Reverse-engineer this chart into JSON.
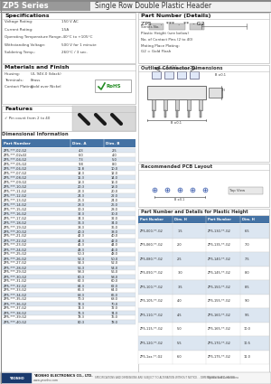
{
  "title_series": "ZP5 Series",
  "title_main": "Single Row Double Plastic Header",
  "header_bg": "#999999",
  "spec_title": "Specifications",
  "specs": [
    [
      "Voltage Rating:",
      "150 V AC"
    ],
    [
      "Current Rating:",
      "1.5A"
    ],
    [
      "Operating Temperature Range:",
      "-40°C to +105°C"
    ],
    [
      "Withstanding Voltage:",
      "500 V for 1 minute"
    ],
    [
      "Soldering Temp.:",
      "260°C / 3 sec."
    ]
  ],
  "mat_title": "Materials and Finish",
  "materials": [
    [
      "Housing:",
      "UL 94V-0 (black)"
    ],
    [
      "Terminals:",
      "Brass"
    ],
    [
      "Contact Plating:",
      "Gold over Nickel"
    ]
  ],
  "feat_title": "Features",
  "features": [
    "✓ Pin count from 2 to 40"
  ],
  "dim_title": "Dimensional Information",
  "dim_headers": [
    "Part Number",
    "Dim. A",
    "Dim. B"
  ],
  "dim_rows": [
    [
      "ZP5-***-02-G2",
      "4.3",
      "2.5"
    ],
    [
      "ZP5-***-02x32",
      "6.0",
      "4.0"
    ],
    [
      "ZP5-***-04-G2",
      "7.3",
      "5.0"
    ],
    [
      "ZP5-***-05-G2",
      "9.8",
      "8.0"
    ],
    [
      "ZP5-***-06-G2",
      "11.8",
      "10.0"
    ],
    [
      "ZP5-***-07-G2",
      "14.3",
      "12.0"
    ],
    [
      "ZP5-***-08-G2",
      "16.3",
      "14.0"
    ],
    [
      "ZP5-***-09-G2",
      "18.3",
      "16.0"
    ],
    [
      "ZP5-***-10-G2",
      "20.3",
      "18.0"
    ],
    [
      "ZP5-***-11-G2",
      "22.3",
      "20.0"
    ],
    [
      "ZP5-***-12-G2",
      "24.3",
      "22.0"
    ],
    [
      "ZP5-***-13-G2",
      "26.3",
      "24.0"
    ],
    [
      "ZP5-***-14-G2",
      "28.3",
      "26.0"
    ],
    [
      "ZP5-***-15-G2",
      "30.3",
      "28.0"
    ],
    [
      "ZP5-***-16-G2",
      "32.3",
      "30.0"
    ],
    [
      "ZP5-***-17-G2",
      "34.3",
      "32.0"
    ],
    [
      "ZP5-***-18-G2",
      "36.3",
      "34.0"
    ],
    [
      "ZP5-***-19-G2",
      "38.3",
      "36.0"
    ],
    [
      "ZP5-***-20-G2",
      "40.3",
      "38.0"
    ],
    [
      "ZP5-***-21-G2",
      "42.3",
      "40.0"
    ],
    [
      "ZP5-***-22-G2",
      "44.3",
      "42.0"
    ],
    [
      "ZP5-***-23-G2",
      "46.3",
      "44.0"
    ],
    [
      "ZP5-***-24-G2",
      "48.3",
      "46.0"
    ],
    [
      "ZP5-***-25-G2",
      "50.3",
      "48.0"
    ],
    [
      "ZP5-***-26-G2",
      "52.3",
      "50.0"
    ],
    [
      "ZP5-***-27-G2",
      "54.3",
      "52.0"
    ],
    [
      "ZP5-***-28-G2",
      "56.3",
      "54.0"
    ],
    [
      "ZP5-***-29-G2",
      "58.3",
      "56.0"
    ],
    [
      "ZP5-***-30-G2",
      "60.3",
      "58.0"
    ],
    [
      "ZP5-***-31-G2",
      "62.3",
      "60.0"
    ],
    [
      "ZP5-***-32-G2",
      "64.3",
      "62.0"
    ],
    [
      "ZP5-***-33-G2",
      "66.3",
      "64.0"
    ],
    [
      "ZP5-***-34-G2",
      "68.3",
      "66.0"
    ],
    [
      "ZP5-***-35-G2",
      "70.3",
      "68.0"
    ],
    [
      "ZP5-***-36-G2",
      "72.3",
      "70.0"
    ],
    [
      "ZP5-***-37-G2",
      "74.3",
      "72.0"
    ],
    [
      "ZP5-***-38-G2",
      "76.3",
      "74.0"
    ],
    [
      "ZP5-***-39-G2",
      "78.3",
      "76.0"
    ],
    [
      "ZP5-***-40-G2",
      "80.3",
      "78.0"
    ]
  ],
  "part_detail_title": "Part Number (Details)",
  "part_detail_label": "ZP5     .  ***  .  **  - G2",
  "part_detail_items": [
    [
      "Series No.",
      0.42
    ],
    [
      "Plastic Height (see below)",
      0.55
    ],
    [
      "No. of Contact Pins (2 to 40)",
      0.67
    ],
    [
      "Mating Place Plating:",
      0.79
    ],
    [
      "G2 = Gold Flash",
      0.86
    ]
  ],
  "outline_title": "Outline Connector Dimensions",
  "pcb_title": "Recommended PCB Layout",
  "part_height_title": "Part Number and Details for Plastic Height",
  "part_height_headers": [
    "Part Number",
    "Dim. H",
    "Part Number",
    "Dim. H"
  ],
  "part_height_rows": [
    [
      "ZP5-000-**-G2",
      "1.5",
      "ZP5-130-**-G2",
      "6.5"
    ],
    [
      "ZP5-060-**-G2",
      "2.0",
      "ZP5-135-**-G2",
      "7.0"
    ],
    [
      "ZP5-080-**-G2",
      "2.5",
      "ZP5-140-**-G2",
      "7.5"
    ],
    [
      "ZP5-090-**-G2",
      "3.0",
      "ZP5-145-**-G2",
      "8.0"
    ],
    [
      "ZP5-100-**-G2",
      "3.5",
      "ZP5-150-**-G2",
      "8.5"
    ],
    [
      "ZP5-105-**-G2",
      "4.0",
      "ZP5-155-**-G2",
      "9.0"
    ],
    [
      "ZP5-110-**-G2",
      "4.5",
      "ZP5-160-**-G2",
      "9.5"
    ],
    [
      "ZP5-115-**-G2",
      "5.0",
      "ZP5-165-**-G2",
      "10.0"
    ],
    [
      "ZP5-120-**-G2",
      "5.5",
      "ZP5-170-**-G2",
      "10.5"
    ],
    [
      "ZP5-1xx-**-G2",
      "6.0",
      "ZP5-175-**-G2",
      "11.0"
    ]
  ],
  "bg_color": "#ffffff",
  "table_header_bg": "#4472a4",
  "table_row_alt_bg": "#dce6f1",
  "table_row_bg": "#ffffff",
  "footer_logo": "YEONHO ELECTRONICS CO., LTD.\nwww.yeonho.com",
  "footer_note": "SPECIFICATIONS AND DIMENSIONS ARE SUBJECT TO ALTERATION WITHOUT NOTICE. - DIMENSIONS IN MILLIMETER"
}
